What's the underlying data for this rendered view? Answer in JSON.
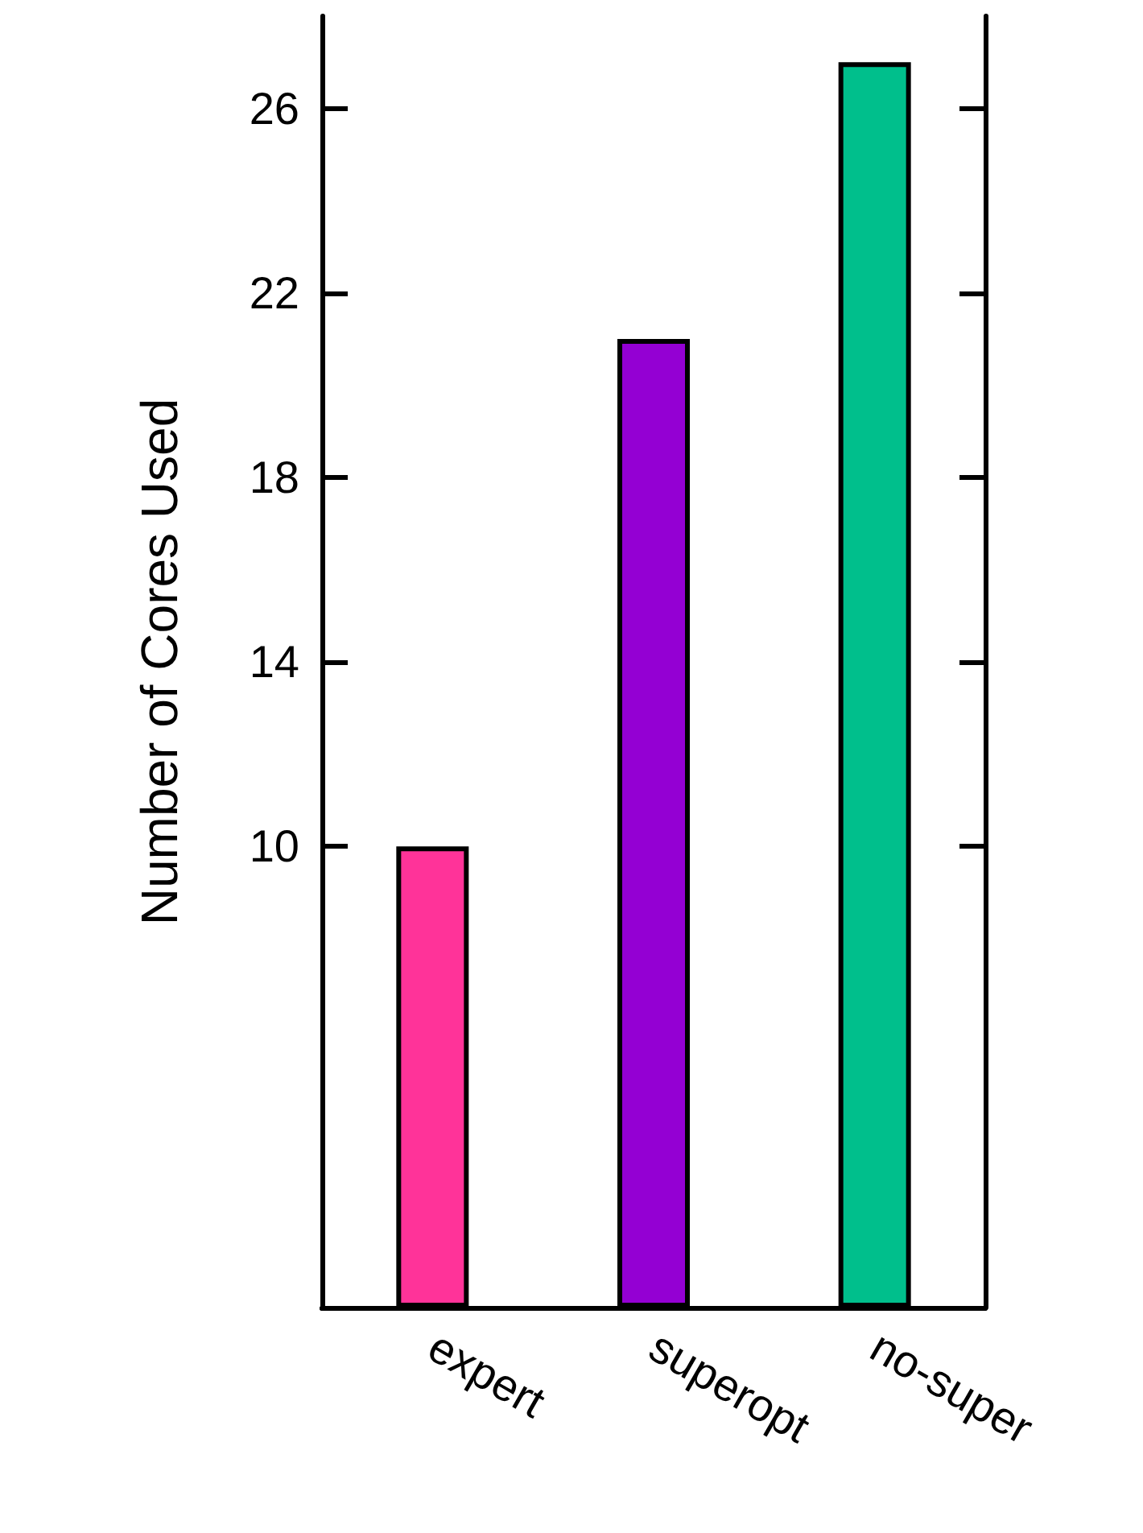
{
  "chart_data": {
    "type": "bar",
    "ylabel": "Number of Cores Used",
    "categories": [
      "expert",
      "superopt",
      "no-super"
    ],
    "colors": [
      "#ff3399",
      "#9400d3",
      "#00bf8c"
    ],
    "values": [
      10,
      21,
      27
    ],
    "ylim": [
      0,
      28
    ],
    "yticks": [
      10,
      14,
      18,
      22,
      26
    ]
  }
}
